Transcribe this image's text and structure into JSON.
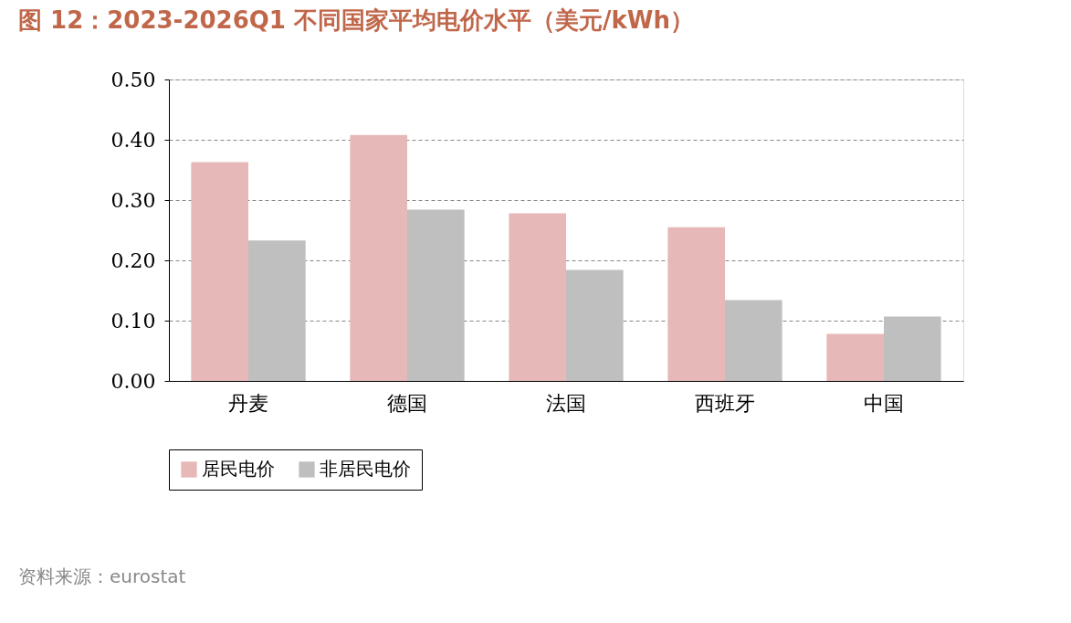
{
  "chart_data": {
    "type": "bar",
    "title": "图 12：2023-2026Q1 不同国家平均电价水平（美元/kWh）",
    "categories": [
      "丹麦",
      "德国",
      "法国",
      "西班牙",
      "中国"
    ],
    "series": [
      {
        "name": "居民电价",
        "color": "#e6b8b7",
        "values": [
          0.363,
          0.408,
          0.278,
          0.255,
          0.078
        ]
      },
      {
        "name": "非居民电价",
        "color": "#bfbfbf",
        "values": [
          0.233,
          0.284,
          0.184,
          0.134,
          0.107
        ]
      }
    ],
    "ylim": [
      0,
      0.5
    ],
    "yticks": [
      {
        "value": 0,
        "label": "0.00"
      },
      {
        "value": 0.1,
        "label": "0.10"
      },
      {
        "value": 0.2,
        "label": "0.20"
      },
      {
        "value": 0.3,
        "label": "0.30"
      },
      {
        "value": 0.4,
        "label": "0.40"
      },
      {
        "value": 0.5,
        "label": "0.50"
      }
    ],
    "grid": "y",
    "legend": "bottom",
    "annotations": [
      "资料来源：eurostat"
    ]
  }
}
